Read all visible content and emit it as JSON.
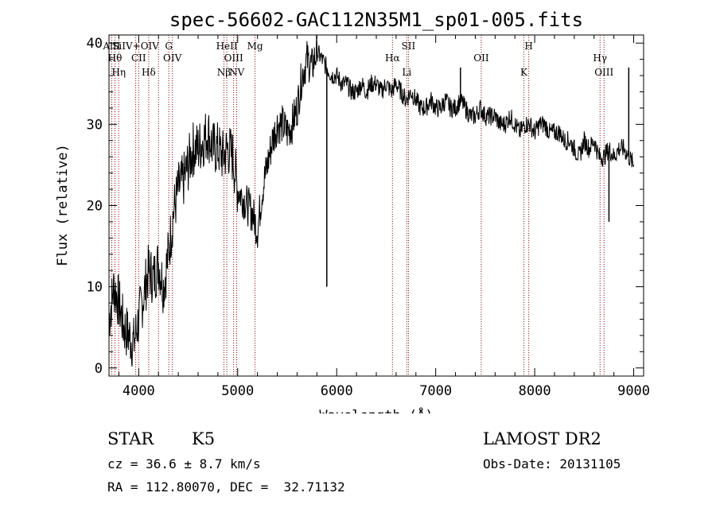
{
  "chart_data": {
    "type": "line",
    "title": "spec-56602-GAC112N35M1_sp01-005.fits",
    "xlabel": "Wavelength (Å)",
    "ylabel": "Flux (relative)",
    "xlim": [
      3700,
      9100
    ],
    "ylim": [
      -1,
      41
    ],
    "xticks": [
      4000,
      5000,
      6000,
      7000,
      8000,
      9000
    ],
    "yticks": [
      0,
      10,
      20,
      30,
      40
    ],
    "grid": false,
    "line_color": "#000000",
    "marker_color": "#8b0000",
    "series": [
      {
        "x": [
          3700,
          3750,
          3800,
          3850,
          3900,
          3950,
          4000,
          4050,
          4100,
          4150,
          4200,
          4250,
          4300,
          4350,
          4400,
          4450,
          4500,
          4550,
          4600,
          4650,
          4700,
          4750,
          4800,
          4850,
          4900,
          4950,
          5000,
          5050,
          5100,
          5150,
          5200,
          5250,
          5300,
          5350,
          5400,
          5450,
          5500,
          5550,
          5600,
          5650,
          5700,
          5750,
          5800,
          5850,
          5900,
          5950,
          6000,
          6050,
          6100,
          6150,
          6200,
          6250,
          6300,
          6350,
          6400,
          6450,
          6500,
          6550,
          6600,
          6650,
          6700,
          6750,
          6800,
          6850,
          6900,
          6950,
          7000,
          7050,
          7100,
          7150,
          7200,
          7250,
          7300,
          7350,
          7400,
          7450,
          7500,
          7550,
          7600,
          7650,
          7700,
          7750,
          7800,
          7850,
          7900,
          7950,
          8000,
          8050,
          8100,
          8150,
          8200,
          8250,
          8300,
          8350,
          8400,
          8450,
          8500,
          8550,
          8600,
          8650,
          8700,
          8750,
          8800,
          8850,
          8900,
          8950,
          9000
        ],
        "values": [
          6,
          10,
          8,
          5,
          4,
          3,
          6,
          9,
          12,
          11,
          13,
          10,
          14,
          19,
          22,
          23,
          25,
          27,
          27,
          28,
          29,
          27,
          27,
          26,
          27,
          26,
          22,
          21,
          20,
          19,
          17,
          22,
          25,
          28,
          30,
          30,
          29,
          30,
          32,
          36,
          38,
          37,
          39,
          38,
          37,
          36,
          36,
          35,
          35,
          34,
          34,
          35,
          34,
          35,
          35,
          34,
          35,
          34,
          35,
          34,
          33,
          34,
          33,
          32,
          32,
          33,
          32,
          32,
          33,
          32,
          32,
          33,
          32,
          31,
          31,
          32,
          31,
          31,
          31,
          30,
          30,
          31,
          30,
          29,
          30,
          30,
          29,
          30,
          30,
          29,
          29,
          29,
          28,
          28,
          27,
          26,
          28,
          27,
          28,
          26,
          26,
          27,
          26,
          27,
          27,
          26,
          25
        ]
      }
    ],
    "spikes": [
      {
        "x": 5900,
        "y": 10
      },
      {
        "x": 7250,
        "y": 37
      },
      {
        "x": 8750,
        "y": 18
      },
      {
        "x": 8950,
        "y": 37
      }
    ],
    "lines": [
      {
        "x": 3728,
        "label": "AlII"
      },
      {
        "x": 3760,
        "label": "Hθ"
      },
      {
        "x": 3798,
        "label": "Hη"
      },
      {
        "x": 3970,
        "label": "SiIV+OIV"
      },
      {
        "x": 4000,
        "label": "CII"
      },
      {
        "x": 4101,
        "label": "Hδ"
      },
      {
        "x": 4200,
        "label": ""
      },
      {
        "x": 4304,
        "label": "G"
      },
      {
        "x": 4340,
        "label": "OIV"
      },
      {
        "x": 4861,
        "label": "Nβ"
      },
      {
        "x": 4890,
        "label": "HeII"
      },
      {
        "x": 4959,
        "label": "OIII"
      },
      {
        "x": 4990,
        "label": "NV"
      },
      {
        "x": 5175,
        "label": "Mg"
      },
      {
        "x": 6563,
        "label": "Hα"
      },
      {
        "x": 6708,
        "label": "Li"
      },
      {
        "x": 6725,
        "label": "SII"
      },
      {
        "x": 7460,
        "label": "OII"
      },
      {
        "x": 7890,
        "label": "K"
      },
      {
        "x": 7940,
        "label": "H"
      },
      {
        "x": 8660,
        "label": "Hγ"
      },
      {
        "x": 8700,
        "label": "OIII"
      }
    ]
  },
  "info": {
    "class": "STAR",
    "subclass": "K5",
    "cz": "cz = 36.6 ± 8.7 km/s",
    "radec": "RA = 112.80070, DEC =  32.71132",
    "survey": "LAMOST DR2",
    "obsdate": "Obs-Date: 20131105"
  }
}
